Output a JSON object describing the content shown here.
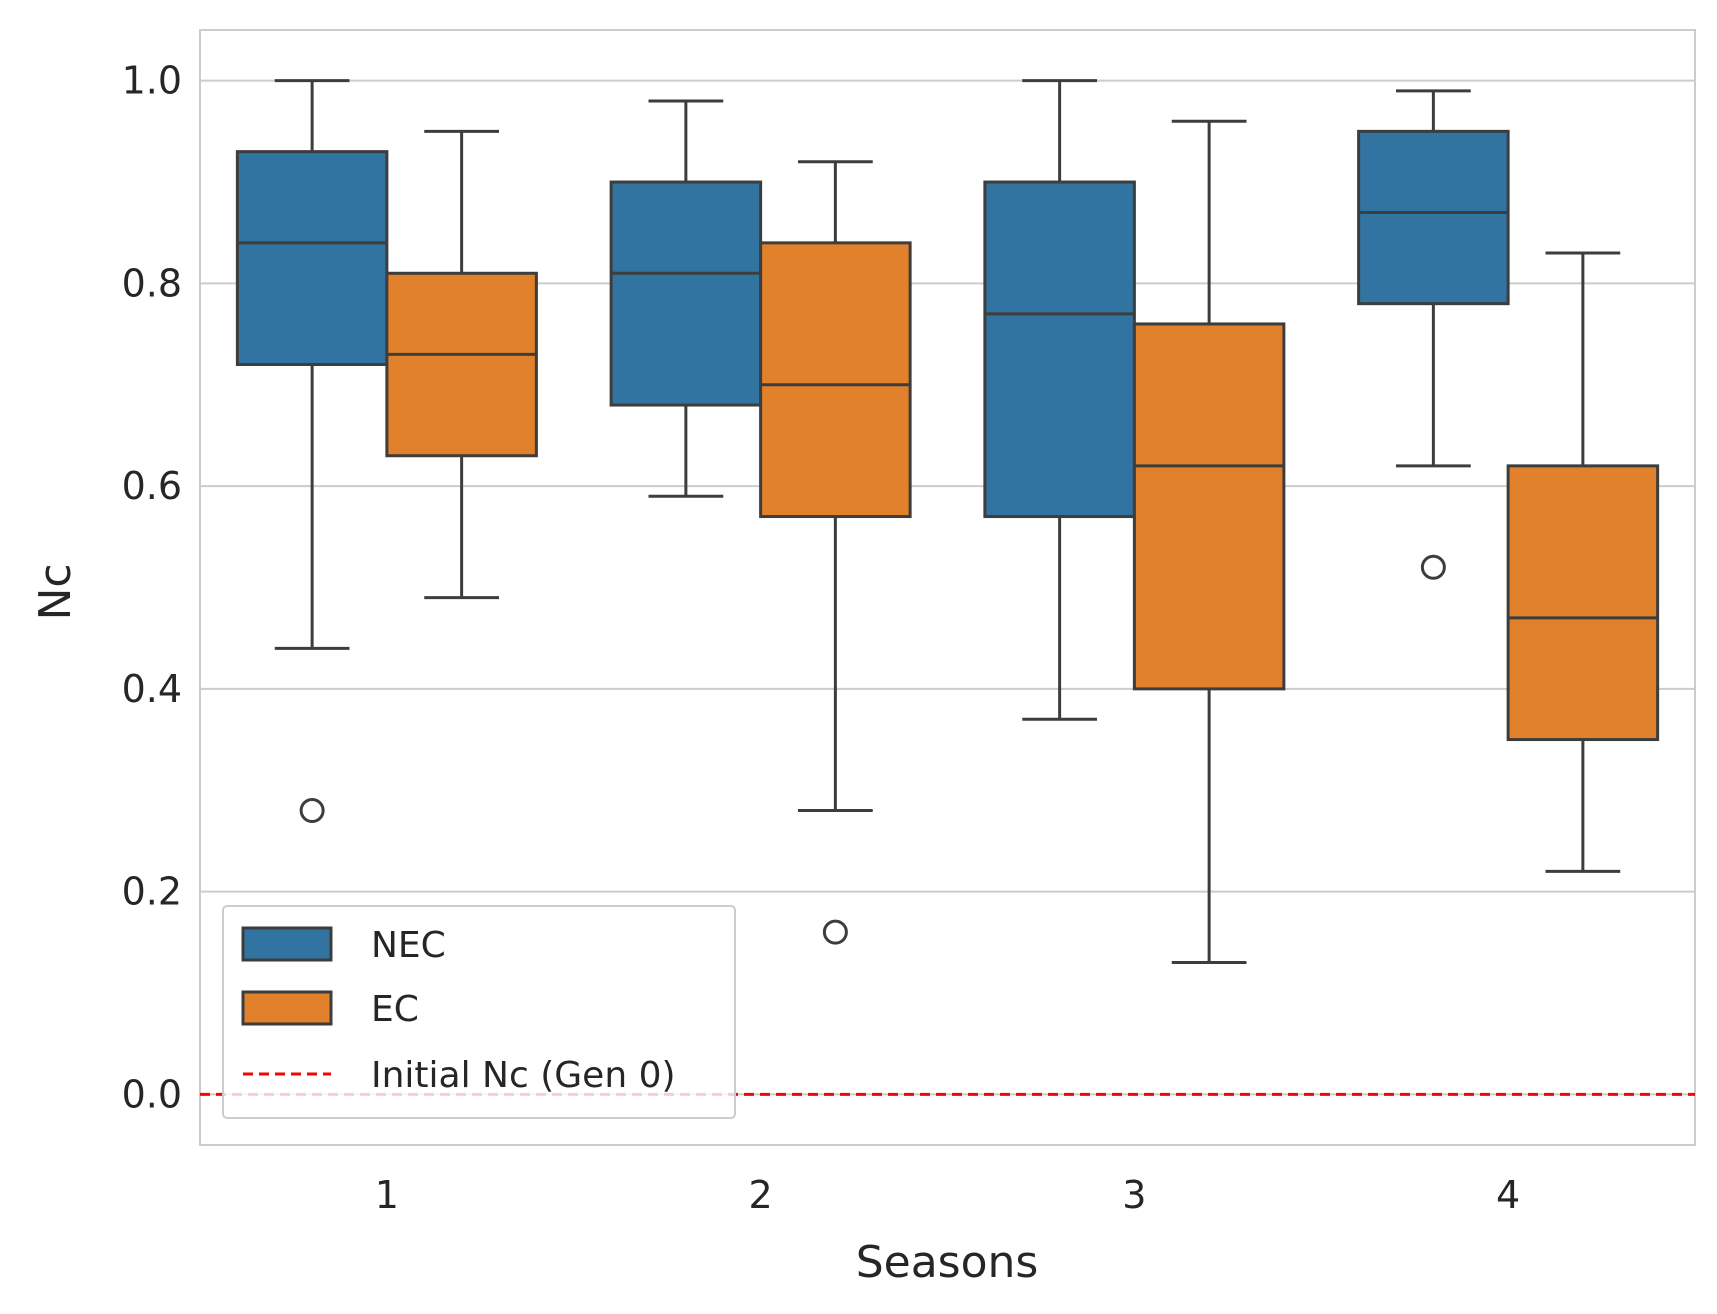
{
  "chart_data": {
    "type": "box",
    "title": "",
    "xlabel": "Seasons",
    "ylabel": "Nc",
    "categories": [
      "1",
      "2",
      "3",
      "4"
    ],
    "ylim": [
      -0.05,
      1.05
    ],
    "yticks": [
      "0.0",
      "0.2",
      "0.4",
      "0.6",
      "0.8",
      "1.0"
    ],
    "ytick_values": [
      0.0,
      0.2,
      0.4,
      0.6,
      0.8,
      1.0
    ],
    "grid": true,
    "legend_position": "lower-left",
    "series": [
      {
        "name": "NEC",
        "color": "#3274a1",
        "boxes": [
          {
            "whisker_low": 0.44,
            "q1": 0.72,
            "median": 0.84,
            "q3": 0.93,
            "whisker_high": 1.0,
            "outliers": [
              0.28
            ]
          },
          {
            "whisker_low": 0.59,
            "q1": 0.68,
            "median": 0.81,
            "q3": 0.9,
            "whisker_high": 0.98,
            "outliers": []
          },
          {
            "whisker_low": 0.37,
            "q1": 0.57,
            "median": 0.77,
            "q3": 0.9,
            "whisker_high": 1.0,
            "outliers": []
          },
          {
            "whisker_low": 0.62,
            "q1": 0.78,
            "median": 0.87,
            "q3": 0.95,
            "whisker_high": 0.99,
            "outliers": [
              0.52
            ]
          }
        ]
      },
      {
        "name": "EC",
        "color": "#e1812c",
        "boxes": [
          {
            "whisker_low": 0.49,
            "q1": 0.63,
            "median": 0.73,
            "q3": 0.81,
            "whisker_high": 0.95,
            "outliers": []
          },
          {
            "whisker_low": 0.28,
            "q1": 0.57,
            "median": 0.7,
            "q3": 0.84,
            "whisker_high": 0.92,
            "outliers": [
              0.16
            ]
          },
          {
            "whisker_low": 0.13,
            "q1": 0.4,
            "median": 0.62,
            "q3": 0.76,
            "whisker_high": 0.96,
            "outliers": []
          },
          {
            "whisker_low": 0.22,
            "q1": 0.35,
            "median": 0.47,
            "q3": 0.62,
            "whisker_high": 0.83,
            "outliers": []
          }
        ]
      }
    ],
    "reference_line": {
      "name": "Initial Nc (Gen 0)",
      "y": 0.0,
      "color": "#ff0000",
      "style": "dashed"
    }
  }
}
